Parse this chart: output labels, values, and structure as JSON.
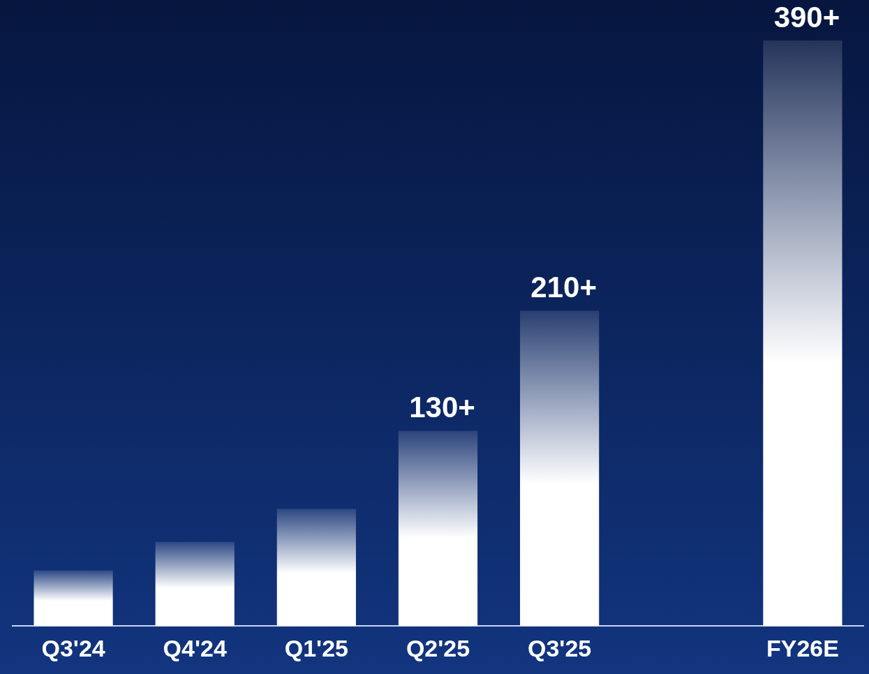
{
  "chart_data": {
    "type": "bar",
    "tick_labels": "x",
    "categories": [
      "Q3'24",
      "Q4'24",
      "Q1'25",
      "Q2'25",
      "Q3'25",
      null,
      "FY26E"
    ],
    "values": [
      37,
      56,
      78,
      130,
      210,
      null,
      390
    ],
    "value_labels": [
      null,
      null,
      null,
      "130+",
      "210+",
      null,
      "390+"
    ],
    "color": "#ffffff",
    "grid": false,
    "legend": false
  }
}
